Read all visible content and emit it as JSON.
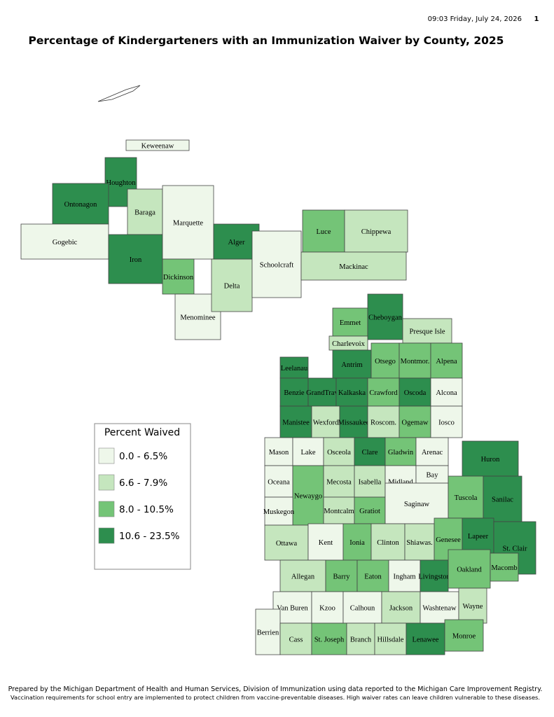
{
  "header": {
    "timestamp": "09:03 Friday, July 24, 2026",
    "page": "1",
    "title": "Percentage of Kindergarteners with an Immunization Waiver by County, 2025"
  },
  "legend": {
    "title": "Percent Waived",
    "classes": [
      {
        "label": "0.0 - 6.5%",
        "color": "#eef7ea"
      },
      {
        "label": "6.6 - 7.9%",
        "color": "#c5e6be"
      },
      {
        "label": "8.0 - 10.5%",
        "color": "#74c477"
      },
      {
        "label": "10.6 - 23.5%",
        "color": "#2d8e4e"
      }
    ]
  },
  "counties": [
    {
      "label": "Keweenaw",
      "color": "#eef7ea"
    },
    {
      "label": "Houghton",
      "color": "#2d8e4e"
    },
    {
      "label": "Ontonagon",
      "color": "#2d8e4e"
    },
    {
      "label": "Gogebic",
      "color": "#eef7ea"
    },
    {
      "label": "Baraga",
      "color": "#c5e6be"
    },
    {
      "label": "Iron",
      "color": "#2d8e4e"
    },
    {
      "label": "Marquette",
      "color": "#eef7ea"
    },
    {
      "label": "Dickinson",
      "color": "#74c477"
    },
    {
      "label": "Menominee",
      "color": "#eef7ea"
    },
    {
      "label": "Delta",
      "color": "#c5e6be"
    },
    {
      "label": "Alger",
      "color": "#2d8e4e"
    },
    {
      "label": "Schoolcraft",
      "color": "#eef7ea"
    },
    {
      "label": "Luce",
      "color": "#74c477"
    },
    {
      "label": "Chippewa",
      "color": "#c5e6be"
    },
    {
      "label": "Mackinac",
      "color": "#c5e6be"
    },
    {
      "label": "Emmet",
      "color": "#74c477"
    },
    {
      "label": "Cheboygan",
      "color": "#2d8e4e"
    },
    {
      "label": "Presque Isle",
      "color": "#c5e6be"
    },
    {
      "label": "Charlevoix",
      "color": "#c5e6be"
    },
    {
      "label": "Leelanau",
      "color": "#2d8e4e"
    },
    {
      "label": "Antrim",
      "color": "#2d8e4e"
    },
    {
      "label": "Otsego",
      "color": "#74c477"
    },
    {
      "label": "Montmor.",
      "color": "#74c477"
    },
    {
      "label": "Alpena",
      "color": "#74c477"
    },
    {
      "label": "Benzie",
      "color": "#2d8e4e"
    },
    {
      "label": "GrandTrav",
      "color": "#2d8e4e"
    },
    {
      "label": "Kalkaska",
      "color": "#2d8e4e"
    },
    {
      "label": "Crawford",
      "color": "#74c477"
    },
    {
      "label": "Oscoda",
      "color": "#2d8e4e"
    },
    {
      "label": "Alcona",
      "color": "#eef7ea"
    },
    {
      "label": "Manistee",
      "color": "#2d8e4e"
    },
    {
      "label": "Wexford",
      "color": "#c5e6be"
    },
    {
      "label": "Missaukee",
      "color": "#2d8e4e"
    },
    {
      "label": "Roscom.",
      "color": "#c5e6be"
    },
    {
      "label": "Ogemaw",
      "color": "#74c477"
    },
    {
      "label": "Iosco",
      "color": "#eef7ea"
    },
    {
      "label": "Mason",
      "color": "#eef7ea"
    },
    {
      "label": "Lake",
      "color": "#eef7ea"
    },
    {
      "label": "Osceola",
      "color": "#c5e6be"
    },
    {
      "label": "Clare",
      "color": "#2d8e4e"
    },
    {
      "label": "Gladwin",
      "color": "#74c477"
    },
    {
      "label": "Arenac",
      "color": "#eef7ea"
    },
    {
      "label": "Oceana",
      "color": "#eef7ea"
    },
    {
      "label": "Newaygo",
      "color": "#74c477"
    },
    {
      "label": "Mecosta",
      "color": "#c5e6be"
    },
    {
      "label": "Isabella",
      "color": "#c5e6be"
    },
    {
      "label": "Midland",
      "color": "#eef7ea"
    },
    {
      "label": "Bay",
      "color": "#eef7ea"
    },
    {
      "label": "Huron",
      "color": "#2d8e4e"
    },
    {
      "label": "Muskegon",
      "color": "#eef7ea"
    },
    {
      "label": "Montcalm",
      "color": "#c5e6be"
    },
    {
      "label": "Gratiot",
      "color": "#74c477"
    },
    {
      "label": "Saginaw",
      "color": "#eef7ea"
    },
    {
      "label": "Tuscola",
      "color": "#74c477"
    },
    {
      "label": "Sanilac",
      "color": "#2d8e4e"
    },
    {
      "label": "Ottawa",
      "color": "#c5e6be"
    },
    {
      "label": "Kent",
      "color": "#eef7ea"
    },
    {
      "label": "Ionia",
      "color": "#74c477"
    },
    {
      "label": "Clinton",
      "color": "#c5e6be"
    },
    {
      "label": "Shiawas.",
      "color": "#c5e6be"
    },
    {
      "label": "Genesee",
      "color": "#74c477"
    },
    {
      "label": "Lapeer",
      "color": "#2d8e4e"
    },
    {
      "label": "St. Clair",
      "color": "#2d8e4e"
    },
    {
      "label": "Allegan",
      "color": "#c5e6be"
    },
    {
      "label": "Barry",
      "color": "#74c477"
    },
    {
      "label": "Eaton",
      "color": "#74c477"
    },
    {
      "label": "Ingham",
      "color": "#eef7ea"
    },
    {
      "label": "Livingston",
      "color": "#2d8e4e"
    },
    {
      "label": "Oakland",
      "color": "#74c477"
    },
    {
      "label": "Macomb",
      "color": "#74c477"
    },
    {
      "label": "Van Buren",
      "color": "#eef7ea"
    },
    {
      "label": "Kzoo",
      "color": "#eef7ea"
    },
    {
      "label": "Calhoun",
      "color": "#eef7ea"
    },
    {
      "label": "Jackson",
      "color": "#c5e6be"
    },
    {
      "label": "Washtenaw",
      "color": "#eef7ea"
    },
    {
      "label": "Wayne",
      "color": "#c5e6be"
    },
    {
      "label": "Berrien",
      "color": "#eef7ea"
    },
    {
      "label": "Cass",
      "color": "#c5e6be"
    },
    {
      "label": "St. Joseph",
      "color": "#74c477"
    },
    {
      "label": "Branch",
      "color": "#c5e6be"
    },
    {
      "label": "Hillsdale",
      "color": "#c5e6be"
    },
    {
      "label": "Lenawee",
      "color": "#2d8e4e"
    },
    {
      "label": "Monroe",
      "color": "#74c477"
    }
  ],
  "footer": {
    "line1": "Prepared by the Michigan Department of Health and Human Services, Division of Immunization using data reported to the Michigan Care Improvement Registry.",
    "line2": "Vaccination requirements for school entry are implemented to protect children from vaccine-preventable diseases. High waiver rates can leave children vulnerable to these diseases."
  }
}
